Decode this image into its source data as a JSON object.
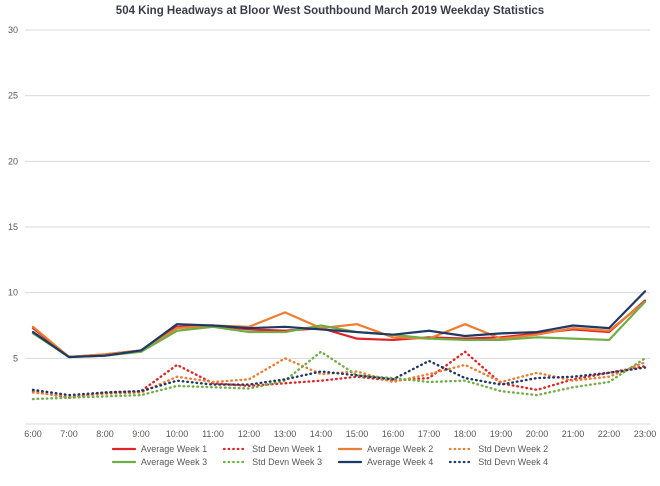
{
  "chart_data": {
    "type": "line",
    "title": "504 King Headways at Bloor West Southbound March 2019 Weekday Statistics",
    "categories": [
      "6:00",
      "7:00",
      "8:00",
      "9:00",
      "10:00",
      "11:00",
      "12:00",
      "13:00",
      "14:00",
      "15:00",
      "16:00",
      "17:00",
      "18:00",
      "19:00",
      "20:00",
      "21:00",
      "22:00",
      "23:00"
    ],
    "xlabel": "",
    "ylabel": "",
    "ylim": [
      0,
      30
    ],
    "y_ticks": [
      5,
      10,
      15,
      20,
      25,
      30
    ],
    "grid": true,
    "legend_position": "bottom",
    "series": [
      {
        "name": "Average Week 1",
        "color": "#e02326",
        "line_style": "solid",
        "values": [
          7.3,
          5.1,
          5.3,
          5.6,
          7.4,
          7.5,
          7.2,
          7.1,
          7.3,
          6.5,
          6.4,
          6.6,
          6.5,
          6.6,
          6.9,
          7.2,
          7.0,
          9.4
        ]
      },
      {
        "name": "Std Devn Week 1",
        "color": "#e02326",
        "line_style": "dotted",
        "values": [
          2.5,
          2.0,
          2.4,
          2.5,
          4.5,
          3.1,
          2.9,
          3.1,
          3.3,
          3.6,
          3.3,
          3.5,
          5.5,
          3.1,
          2.6,
          3.4,
          3.9,
          4.4
        ]
      },
      {
        "name": "Average Week 2",
        "color": "#ed7d31",
        "line_style": "solid",
        "values": [
          7.4,
          5.1,
          5.3,
          5.6,
          7.3,
          7.5,
          7.4,
          8.5,
          7.3,
          7.6,
          6.6,
          6.5,
          7.6,
          6.5,
          6.8,
          7.3,
          7.1,
          9.3
        ]
      },
      {
        "name": "Std Devn Week 2",
        "color": "#ed7d31",
        "line_style": "dotted",
        "values": [
          2.4,
          2.1,
          2.3,
          2.4,
          3.6,
          3.2,
          3.4,
          5.0,
          3.8,
          4.0,
          3.2,
          3.8,
          4.5,
          3.2,
          3.9,
          3.3,
          3.6,
          4.7
        ]
      },
      {
        "name": "Average Week 3",
        "color": "#70ad47",
        "line_style": "solid",
        "values": [
          6.9,
          5.1,
          5.2,
          5.5,
          7.1,
          7.4,
          7.0,
          7.0,
          7.5,
          7.0,
          6.8,
          6.5,
          6.4,
          6.4,
          6.6,
          6.5,
          6.4,
          9.3
        ]
      },
      {
        "name": "Std Devn Week 3",
        "color": "#70ad47",
        "line_style": "dotted",
        "values": [
          1.9,
          2.0,
          2.1,
          2.2,
          2.9,
          2.8,
          2.7,
          3.3,
          5.5,
          3.7,
          3.5,
          3.2,
          3.3,
          2.5,
          2.2,
          2.8,
          3.2,
          5.0
        ]
      },
      {
        "name": "Average Week 4",
        "color": "#1f3864",
        "line_style": "solid",
        "values": [
          7.0,
          5.1,
          5.2,
          5.6,
          7.6,
          7.5,
          7.3,
          7.4,
          7.2,
          7.0,
          6.8,
          7.1,
          6.7,
          6.9,
          7.0,
          7.5,
          7.3,
          10.1
        ]
      },
      {
        "name": "Std Devn Week 4",
        "color": "#1f3864",
        "line_style": "dotted",
        "values": [
          2.6,
          2.2,
          2.4,
          2.5,
          3.3,
          3.0,
          3.0,
          3.4,
          4.0,
          3.7,
          3.4,
          4.8,
          3.5,
          3.0,
          3.5,
          3.6,
          3.9,
          4.3
        ]
      }
    ],
    "gridline_color": "#d9d9d9",
    "axis_label_color": "#595959"
  }
}
